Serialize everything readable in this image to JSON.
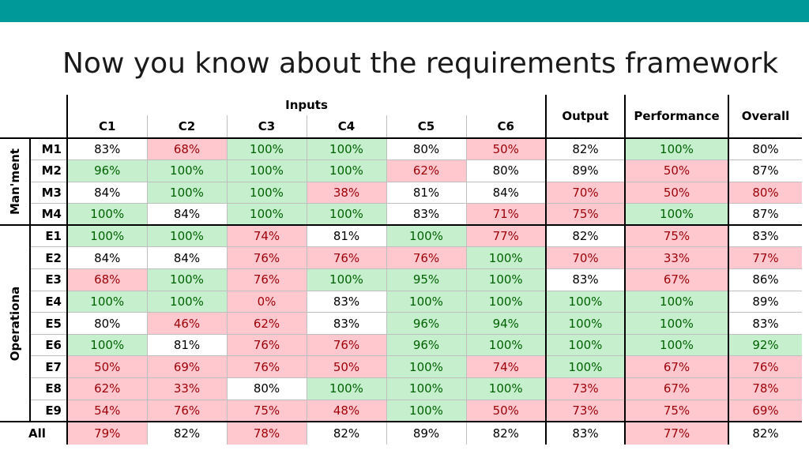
{
  "slide": {
    "title": "Now you know about the requirements framework"
  },
  "colors": {
    "top_bar": "#00999a",
    "good_fill": "#c6efce",
    "good_text": "#006100",
    "bad_fill": "#ffc7ce",
    "bad_text": "#9c0006"
  },
  "table": {
    "header": {
      "inputs": "Inputs",
      "input_cols": [
        "C1",
        "C2",
        "C3",
        "C4",
        "C5",
        "C6"
      ],
      "output": "Output",
      "performance": "Performance",
      "overall": "Overall"
    },
    "groups": [
      {
        "name": "Man'ment",
        "rows": [
          {
            "label": "M1",
            "cells": [
              {
                "v": "83%",
                "s": "w"
              },
              {
                "v": "68%",
                "s": "r"
              },
              {
                "v": "100%",
                "s": "g"
              },
              {
                "v": "100%",
                "s": "g"
              },
              {
                "v": "80%",
                "s": "w"
              },
              {
                "v": "50%",
                "s": "r"
              },
              {
                "v": "82%",
                "s": "w"
              },
              {
                "v": "100%",
                "s": "g"
              },
              {
                "v": "80%",
                "s": "w"
              }
            ]
          },
          {
            "label": "M2",
            "cells": [
              {
                "v": "96%",
                "s": "g"
              },
              {
                "v": "100%",
                "s": "g"
              },
              {
                "v": "100%",
                "s": "g"
              },
              {
                "v": "100%",
                "s": "g"
              },
              {
                "v": "62%",
                "s": "r"
              },
              {
                "v": "80%",
                "s": "w"
              },
              {
                "v": "89%",
                "s": "w"
              },
              {
                "v": "50%",
                "s": "r"
              },
              {
                "v": "87%",
                "s": "w"
              }
            ]
          },
          {
            "label": "M3",
            "cells": [
              {
                "v": "84%",
                "s": "w"
              },
              {
                "v": "100%",
                "s": "g"
              },
              {
                "v": "100%",
                "s": "g"
              },
              {
                "v": "38%",
                "s": "r"
              },
              {
                "v": "81%",
                "s": "w"
              },
              {
                "v": "84%",
                "s": "w"
              },
              {
                "v": "70%",
                "s": "r"
              },
              {
                "v": "50%",
                "s": "r"
              },
              {
                "v": "80%",
                "s": "r"
              }
            ]
          },
          {
            "label": "M4",
            "cells": [
              {
                "v": "100%",
                "s": "g"
              },
              {
                "v": "84%",
                "s": "w"
              },
              {
                "v": "100%",
                "s": "g"
              },
              {
                "v": "100%",
                "s": "g"
              },
              {
                "v": "83%",
                "s": "w"
              },
              {
                "v": "71%",
                "s": "r"
              },
              {
                "v": "75%",
                "s": "r"
              },
              {
                "v": "100%",
                "s": "g"
              },
              {
                "v": "87%",
                "s": "w"
              }
            ]
          }
        ]
      },
      {
        "name": "Operationa",
        "rows": [
          {
            "label": "E1",
            "cells": [
              {
                "v": "100%",
                "s": "g"
              },
              {
                "v": "100%",
                "s": "g"
              },
              {
                "v": "74%",
                "s": "r"
              },
              {
                "v": "81%",
                "s": "w"
              },
              {
                "v": "100%",
                "s": "g"
              },
              {
                "v": "77%",
                "s": "r"
              },
              {
                "v": "82%",
                "s": "w"
              },
              {
                "v": "75%",
                "s": "r"
              },
              {
                "v": "83%",
                "s": "w"
              }
            ]
          },
          {
            "label": "E2",
            "cells": [
              {
                "v": "84%",
                "s": "w"
              },
              {
                "v": "84%",
                "s": "w"
              },
              {
                "v": "76%",
                "s": "r"
              },
              {
                "v": "76%",
                "s": "r"
              },
              {
                "v": "76%",
                "s": "r"
              },
              {
                "v": "100%",
                "s": "g"
              },
              {
                "v": "70%",
                "s": "r"
              },
              {
                "v": "33%",
                "s": "r"
              },
              {
                "v": "77%",
                "s": "r"
              }
            ]
          },
          {
            "label": "E3",
            "cells": [
              {
                "v": "68%",
                "s": "r"
              },
              {
                "v": "100%",
                "s": "g"
              },
              {
                "v": "76%",
                "s": "r"
              },
              {
                "v": "100%",
                "s": "g"
              },
              {
                "v": "95%",
                "s": "g"
              },
              {
                "v": "100%",
                "s": "g"
              },
              {
                "v": "83%",
                "s": "w"
              },
              {
                "v": "67%",
                "s": "r"
              },
              {
                "v": "86%",
                "s": "w"
              }
            ]
          },
          {
            "label": "E4",
            "cells": [
              {
                "v": "100%",
                "s": "g"
              },
              {
                "v": "100%",
                "s": "g"
              },
              {
                "v": "0%",
                "s": "r"
              },
              {
                "v": "83%",
                "s": "w"
              },
              {
                "v": "100%",
                "s": "g"
              },
              {
                "v": "100%",
                "s": "g"
              },
              {
                "v": "100%",
                "s": "g"
              },
              {
                "v": "100%",
                "s": "g"
              },
              {
                "v": "89%",
                "s": "w"
              }
            ]
          },
          {
            "label": "E5",
            "cells": [
              {
                "v": "80%",
                "s": "w"
              },
              {
                "v": "46%",
                "s": "r"
              },
              {
                "v": "62%",
                "s": "r"
              },
              {
                "v": "83%",
                "s": "w"
              },
              {
                "v": "96%",
                "s": "g"
              },
              {
                "v": "94%",
                "s": "g"
              },
              {
                "v": "100%",
                "s": "g"
              },
              {
                "v": "100%",
                "s": "g"
              },
              {
                "v": "83%",
                "s": "w"
              }
            ]
          },
          {
            "label": "E6",
            "cells": [
              {
                "v": "100%",
                "s": "g"
              },
              {
                "v": "81%",
                "s": "w"
              },
              {
                "v": "76%",
                "s": "r"
              },
              {
                "v": "76%",
                "s": "r"
              },
              {
                "v": "96%",
                "s": "g"
              },
              {
                "v": "100%",
                "s": "g"
              },
              {
                "v": "100%",
                "s": "g"
              },
              {
                "v": "100%",
                "s": "g"
              },
              {
                "v": "92%",
                "s": "g"
              }
            ]
          },
          {
            "label": "E7",
            "cells": [
              {
                "v": "50%",
                "s": "r"
              },
              {
                "v": "69%",
                "s": "r"
              },
              {
                "v": "76%",
                "s": "r"
              },
              {
                "v": "50%",
                "s": "r"
              },
              {
                "v": "100%",
                "s": "g"
              },
              {
                "v": "74%",
                "s": "r"
              },
              {
                "v": "100%",
                "s": "g"
              },
              {
                "v": "67%",
                "s": "r"
              },
              {
                "v": "76%",
                "s": "r"
              }
            ]
          },
          {
            "label": "E8",
            "cells": [
              {
                "v": "62%",
                "s": "r"
              },
              {
                "v": "33%",
                "s": "r"
              },
              {
                "v": "80%",
                "s": "w"
              },
              {
                "v": "100%",
                "s": "g"
              },
              {
                "v": "100%",
                "s": "g"
              },
              {
                "v": "100%",
                "s": "g"
              },
              {
                "v": "73%",
                "s": "r"
              },
              {
                "v": "67%",
                "s": "r"
              },
              {
                "v": "78%",
                "s": "r"
              }
            ]
          },
          {
            "label": "E9",
            "cells": [
              {
                "v": "54%",
                "s": "r"
              },
              {
                "v": "76%",
                "s": "r"
              },
              {
                "v": "75%",
                "s": "r"
              },
              {
                "v": "48%",
                "s": "r"
              },
              {
                "v": "100%",
                "s": "g"
              },
              {
                "v": "50%",
                "s": "r"
              },
              {
                "v": "73%",
                "s": "r"
              },
              {
                "v": "75%",
                "s": "r"
              },
              {
                "v": "69%",
                "s": "r"
              }
            ]
          }
        ]
      }
    ],
    "all_row": {
      "label": "All",
      "cells": [
        {
          "v": "79%",
          "s": "r"
        },
        {
          "v": "82%",
          "s": "w"
        },
        {
          "v": "78%",
          "s": "r"
        },
        {
          "v": "82%",
          "s": "w"
        },
        {
          "v": "89%",
          "s": "w"
        },
        {
          "v": "82%",
          "s": "w"
        },
        {
          "v": "83%",
          "s": "w"
        },
        {
          "v": "77%",
          "s": "r"
        },
        {
          "v": "82%",
          "s": "w"
        }
      ]
    }
  }
}
